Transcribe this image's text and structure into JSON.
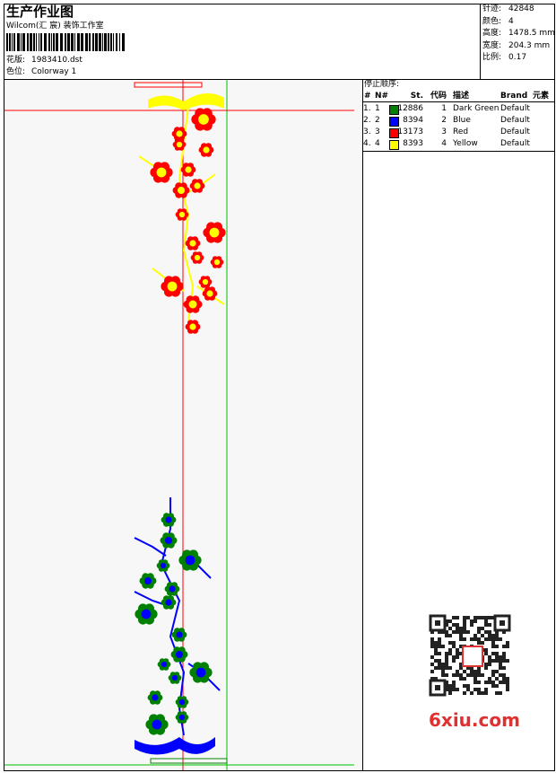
{
  "header": {
    "title": "生产作业图",
    "studio": "Wilcom(汇 宸) 装饰工作室",
    "design_label": "花版:",
    "design": "1983410.dst",
    "colorway_label": "色位:",
    "colorway": "Colorway 1"
  },
  "stats": [
    {
      "label": "针迹:",
      "value": "42848"
    },
    {
      "label": "颜色:",
      "value": "4"
    },
    {
      "label": "高度:",
      "value": "1478.5 mm"
    },
    {
      "label": "宽度:",
      "value": "204.3 mm"
    },
    {
      "label": "比例:",
      "value": "0.17"
    }
  ],
  "stop_sequence": {
    "title": "停止顺序:",
    "columns": [
      "#",
      "N#",
      "St.",
      "代码",
      "描述",
      "Brand",
      "元素"
    ],
    "rows": [
      {
        "index": "1.",
        "needle": "1",
        "color": "#008000",
        "stitches": "12886",
        "code": "1",
        "description": "Dark Green",
        "brand": "Default"
      },
      {
        "index": "2.",
        "needle": "2",
        "color": "#0000ff",
        "stitches": "8394",
        "code": "2",
        "description": "Blue",
        "brand": "Default"
      },
      {
        "index": "3.",
        "needle": "3",
        "color": "#ff0000",
        "stitches": "13173",
        "code": "3",
        "description": "Red",
        "brand": "Default"
      },
      {
        "index": "4.",
        "needle": "4",
        "color": "#ffff00",
        "stitches": "8393",
        "code": "4",
        "description": "Yellow",
        "brand": "Default"
      }
    ]
  },
  "watermark": "6xiu.com"
}
